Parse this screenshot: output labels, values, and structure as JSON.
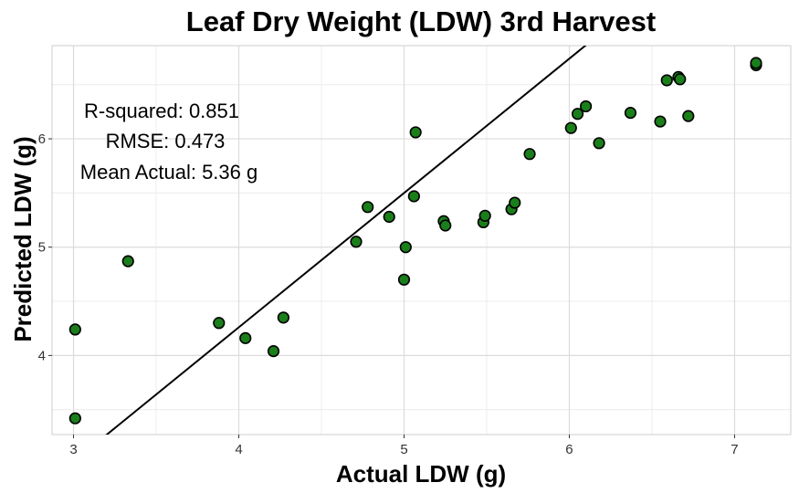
{
  "chart_data": {
    "type": "scatter",
    "title": "Leaf Dry Weight (LDW) 3rd Harvest",
    "xlabel": "Actual LDW (g)",
    "ylabel": "Predicted LDW (g)",
    "xlim": [
      2.87,
      7.34
    ],
    "ylim": [
      3.27,
      6.86
    ],
    "xticks": [
      "3",
      "4",
      "5",
      "6",
      "7"
    ],
    "yticks": [
      "4",
      "5",
      "6"
    ],
    "grid": true,
    "point_color": "#1a7f1a",
    "point_edge_color": "#000000",
    "line_color": "#000000",
    "fit_line": {
      "intercept": -0.7,
      "slope": 1.24
    },
    "points": [
      {
        "x": 3.01,
        "y": 3.42
      },
      {
        "x": 3.01,
        "y": 4.24
      },
      {
        "x": 3.33,
        "y": 4.87
      },
      {
        "x": 3.88,
        "y": 4.3
      },
      {
        "x": 4.04,
        "y": 4.16
      },
      {
        "x": 4.21,
        "y": 4.04
      },
      {
        "x": 4.27,
        "y": 4.35
      },
      {
        "x": 4.71,
        "y": 5.05
      },
      {
        "x": 4.78,
        "y": 5.37
      },
      {
        "x": 4.91,
        "y": 5.28
      },
      {
        "x": 5.0,
        "y": 4.7
      },
      {
        "x": 5.01,
        "y": 5.0
      },
      {
        "x": 5.06,
        "y": 5.47
      },
      {
        "x": 5.07,
        "y": 6.06
      },
      {
        "x": 5.24,
        "y": 5.24
      },
      {
        "x": 5.25,
        "y": 5.2
      },
      {
        "x": 5.48,
        "y": 5.23
      },
      {
        "x": 5.49,
        "y": 5.29
      },
      {
        "x": 5.65,
        "y": 5.35
      },
      {
        "x": 5.67,
        "y": 5.41
      },
      {
        "x": 5.76,
        "y": 5.86
      },
      {
        "x": 6.01,
        "y": 6.1
      },
      {
        "x": 6.05,
        "y": 6.23
      },
      {
        "x": 6.1,
        "y": 6.3
      },
      {
        "x": 6.18,
        "y": 5.96
      },
      {
        "x": 6.37,
        "y": 6.24
      },
      {
        "x": 6.55,
        "y": 6.16
      },
      {
        "x": 6.59,
        "y": 6.54
      },
      {
        "x": 6.66,
        "y": 6.57
      },
      {
        "x": 6.67,
        "y": 6.55
      },
      {
        "x": 6.72,
        "y": 6.21
      },
      {
        "x": 7.13,
        "y": 6.68
      },
      {
        "x": 7.13,
        "y": 6.7
      }
    ],
    "annotations": [
      {
        "text": "R-squared:  0.851"
      },
      {
        "text": "RMSE:  0.473"
      },
      {
        "text": "Mean Actual:  5.36 g"
      }
    ]
  }
}
